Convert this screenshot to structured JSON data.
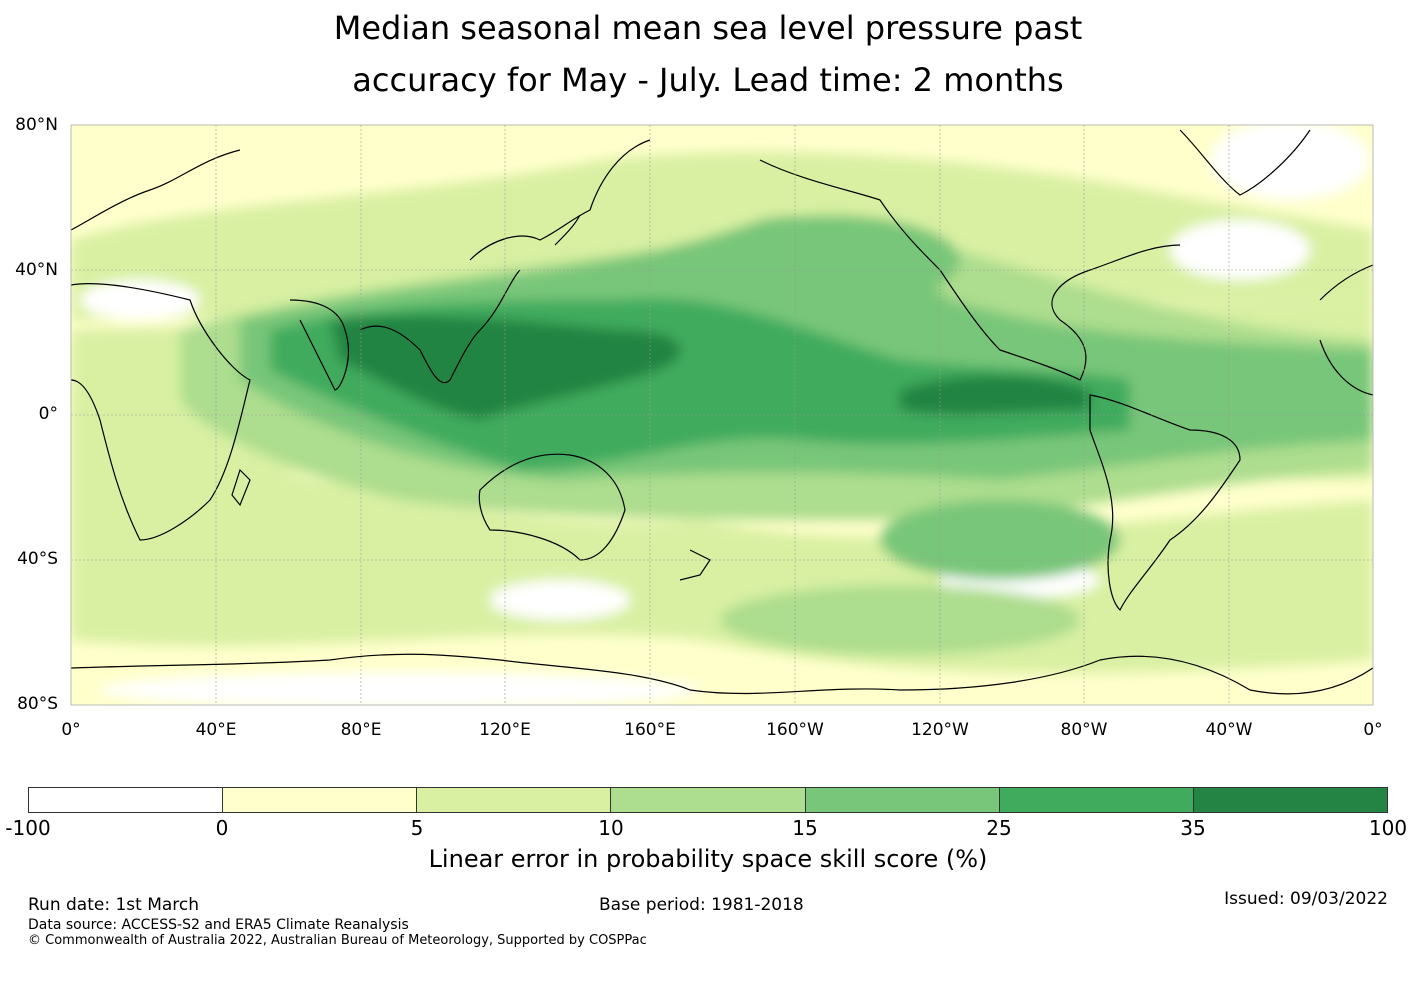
{
  "title": {
    "line1": "Median seasonal mean sea level pressure past",
    "line2": "accuracy for May - July. Lead time: 2 months"
  },
  "map": {
    "projection": "equirectangular",
    "lon_range": [
      0,
      360
    ],
    "lat_range": [
      -80,
      80
    ],
    "gridlines": true,
    "lat_labels": [
      "80°N",
      "40°N",
      "0°",
      "40°S",
      "80°S"
    ],
    "lon_labels": [
      "0°",
      "40°E",
      "80°E",
      "120°E",
      "160°E",
      "160°W",
      "120°W",
      "80°W",
      "40°W",
      "0°"
    ],
    "regions_high_skill": [
      {
        "name": "tropical Indian Ocean / Maritime Continent",
        "level": "25-35 to 35-100"
      },
      {
        "name": "tropical central Pacific",
        "level": "15-25 to 35-100"
      },
      {
        "name": "eastern tropical Pacific",
        "level": "35-100"
      },
      {
        "name": "North Pacific",
        "level": "15-25"
      },
      {
        "name": "tropical Atlantic",
        "level": "15-25"
      }
    ]
  },
  "colorbar": {
    "ticks": [
      "-100",
      "0",
      "5",
      "10",
      "15",
      "25",
      "35",
      "100"
    ],
    "colors": [
      "#ffffff",
      "#ffffcc",
      "#d9f0a3",
      "#addd8e",
      "#78c679",
      "#41ab5d",
      "#238443"
    ],
    "label": "Linear error in probability space skill score (%)"
  },
  "footer": {
    "run_date": "Run date: 1st March",
    "base_period": "Base period: 1981-2018",
    "issued": "Issued: 09/03/2022",
    "data_source": "Data source: ACCESS-S2 and ERA5 Climate Reanalysis",
    "copyright": "© Commonwealth of Australia 2022, Australian Bureau of Meteorology, Supported by COSPPac"
  }
}
